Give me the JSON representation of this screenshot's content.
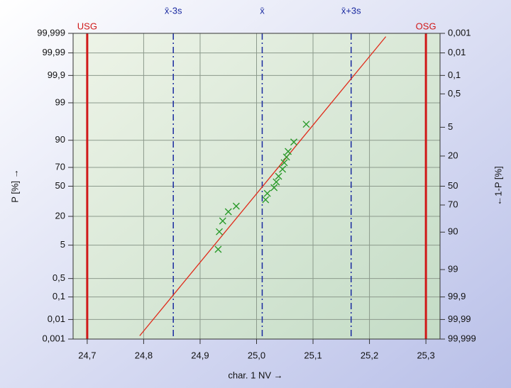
{
  "chart_data": {
    "type": "probability",
    "x_label": "char. 1  NV →",
    "y_label": "P [%] →",
    "y2_label": "←1-P [%]",
    "xlim": [
      24.675,
      25.325
    ],
    "xticks": [
      {
        "value": 24.7,
        "label": "24,7"
      },
      {
        "value": 24.8,
        "label": "24,8"
      },
      {
        "value": 24.9,
        "label": "24,9"
      },
      {
        "value": 25.0,
        "label": "25,0"
      },
      {
        "value": 25.1,
        "label": "25,1"
      },
      {
        "value": 25.2,
        "label": "25,2"
      },
      {
        "value": 25.3,
        "label": "25,3"
      }
    ],
    "ylim": [
      0.001,
      99.999
    ],
    "yticks": [
      {
        "value": 0.001,
        "label": "0,001"
      },
      {
        "value": 0.01,
        "label": "0,01"
      },
      {
        "value": 0.1,
        "label": "0,1"
      },
      {
        "value": 0.5,
        "label": "0,5"
      },
      5,
      20,
      50,
      70,
      90,
      99,
      {
        "value": 99.9,
        "label": "99,9"
      },
      {
        "value": 99.99,
        "label": "99,99"
      },
      {
        "value": 99.999,
        "label": "99,999"
      }
    ],
    "y2lim": [
      99.999,
      0.001
    ],
    "y2ticks": [
      {
        "value": 0.001,
        "label": "0,001"
      },
      {
        "value": 0.01,
        "label": "0,01"
      },
      {
        "value": 0.1,
        "label": "0,1"
      },
      {
        "value": 0.5,
        "label": "0,5"
      },
      5,
      20,
      50,
      70,
      90,
      99,
      {
        "value": 99.9,
        "label": "99,9"
      },
      {
        "value": 99.99,
        "label": "99,99"
      },
      {
        "value": 99.999,
        "label": "99,999"
      }
    ],
    "yscale": "normal-probability",
    "grid": true,
    "reference_lines": [
      {
        "label": "USG",
        "x": 24.7,
        "color": "#d01818",
        "style": "solid"
      },
      {
        "label": "x̄-3s",
        "x": 24.8525,
        "color": "#1a2aa0",
        "style": "dashdot"
      },
      {
        "label": "x̄",
        "x": 25.01,
        "color": "#1a2aa0",
        "style": "dashdot"
      },
      {
        "label": "x̄+3s",
        "x": 25.1675,
        "color": "#1a2aa0",
        "style": "dashdot"
      },
      {
        "label": "OSG",
        "x": 25.3,
        "color": "#d01818",
        "style": "solid"
      }
    ],
    "fit_line": {
      "x": [
        24.793,
        25.229
      ],
      "values": [
        0.0015,
        99.9985
      ],
      "color": "#e02a1a"
    },
    "points": {
      "x": [
        24.932,
        24.934,
        24.94,
        24.95,
        24.964,
        25.016,
        25.019,
        25.031,
        25.035,
        25.039,
        25.046,
        25.049,
        25.053,
        25.056,
        25.066,
        25.088
      ],
      "values": [
        3.9,
        10.2,
        16.6,
        23.8,
        28.9,
        35.3,
        42.1,
        48.4,
        54.7,
        60.9,
        68.3,
        74.4,
        79.2,
        83.4,
        89.1,
        95.8
      ],
      "color": "#2a9a2a"
    }
  }
}
